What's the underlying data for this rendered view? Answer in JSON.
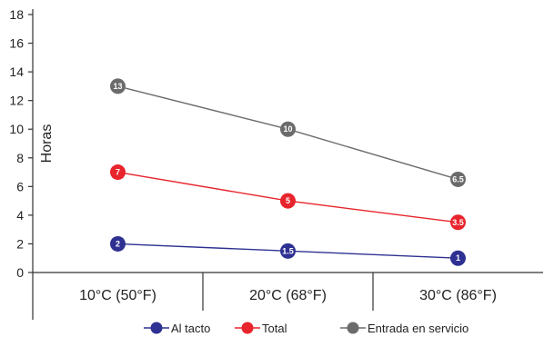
{
  "chart_data": {
    "type": "line",
    "title": "",
    "xlabel": "",
    "ylabel": "Horas",
    "categories": [
      "10°C (50°F)",
      "20°C (68°F)",
      "30°C (86°F)"
    ],
    "ylim": [
      0,
      18
    ],
    "yticks": [
      0,
      2,
      4,
      6,
      8,
      10,
      12,
      14,
      16,
      18
    ],
    "grid": false,
    "legend_position": "bottom",
    "series": [
      {
        "name": "Al tacto",
        "color": "#2e3192",
        "values": [
          2,
          1.5,
          1
        ],
        "point_labels": [
          "2",
          "1.5",
          "1"
        ]
      },
      {
        "name": "Total",
        "color": "#e8242c",
        "values": [
          7,
          5,
          3.5
        ],
        "point_labels": [
          "7",
          "5",
          "3.5"
        ]
      },
      {
        "name": "Entrada en servicio",
        "color": "#6b6b6b",
        "values": [
          13,
          10,
          6.5
        ],
        "point_labels": [
          "13",
          "10",
          "6.5"
        ]
      }
    ]
  }
}
